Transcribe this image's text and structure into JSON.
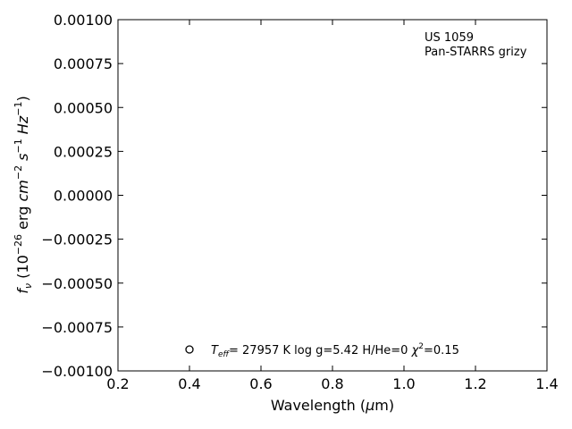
{
  "chart_data": {
    "type": "scatter",
    "xlabel_main": "Wavelength (",
    "xlabel_mu": "μ",
    "xlabel_unit": "m)",
    "ylabel_prefix": "f",
    "ylabel_sub": "ν",
    "ylabel_open": " (10",
    "ylabel_exp1": "−26",
    "ylabel_erg": " erg ",
    "ylabel_cm": "cm",
    "ylabel_exp2": "−2",
    "ylabel_s": " s",
    "ylabel_exp3": "−1",
    "ylabel_hz": " Hz",
    "ylabel_exp4": "−1",
    "ylabel_close": ")",
    "xlim": [
      0.2,
      1.4
    ],
    "ylim": [
      -0.001,
      0.001
    ],
    "xticks": [
      0.2,
      0.4,
      0.6,
      0.8,
      1.0,
      1.2,
      1.4
    ],
    "xtick_labels": [
      "0.2",
      "0.4",
      "0.6",
      "0.8",
      "1.0",
      "1.2",
      "1.4"
    ],
    "yticks": [
      -0.001,
      -0.00075,
      -0.0005,
      -0.00025,
      0.0,
      0.00025,
      0.0005,
      0.00075,
      0.001
    ],
    "ytick_labels": [
      "−0.00100",
      "−0.00075",
      "−0.00050",
      "−0.00025",
      "0.00000",
      "0.00025",
      "0.00050",
      "0.00075",
      "0.00100"
    ],
    "grid": false,
    "annotation": {
      "object": "US 1059",
      "survey": "Pan-STARRS grizy"
    },
    "legend": {
      "marker": "open-circle",
      "teff_label": "T",
      "teff_sub": "eff",
      "teff_value": "= 27957 K  log g=5.42  H/He=0  ",
      "chi": "χ",
      "chi_exp": "2",
      "chi_value": "=0.15",
      "placement": "lower-left"
    },
    "colors": {
      "axes": "#000000",
      "background": "#ffffff"
    }
  }
}
